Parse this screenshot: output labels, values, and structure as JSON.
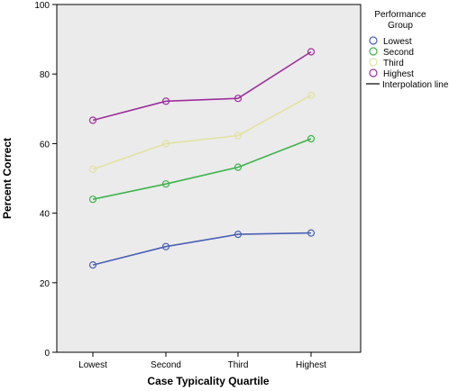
{
  "chart_data": {
    "type": "line",
    "categories": [
      "Lowest",
      "Second",
      "Third",
      "Highest"
    ],
    "xlabel": "Case Typicality Quartile",
    "ylabel": "Percent Correct",
    "ylim": [
      0,
      100
    ],
    "yticks": [
      "0",
      "20",
      "40",
      "60",
      "80",
      "100"
    ],
    "grid": false,
    "legend": {
      "title_line1": "Performance",
      "title_line2": "Group",
      "placement": "right",
      "interpolation_label": "Interpolation line"
    },
    "series": [
      {
        "name": "Lowest",
        "color": "#4a5fb5",
        "values": [
          25.1,
          30.4,
          33.9,
          34.3
        ]
      },
      {
        "name": "Second",
        "color": "#3db34a",
        "values": [
          44.0,
          48.4,
          53.2,
          61.4
        ]
      },
      {
        "name": "Third",
        "color": "#e2e2a2",
        "values": [
          52.6,
          60.0,
          62.3,
          73.9
        ]
      },
      {
        "name": "Highest",
        "color": "#9c2f9a",
        "values": [
          66.7,
          72.2,
          73.0,
          86.4
        ]
      }
    ],
    "plot_background": "#ebebeb"
  }
}
